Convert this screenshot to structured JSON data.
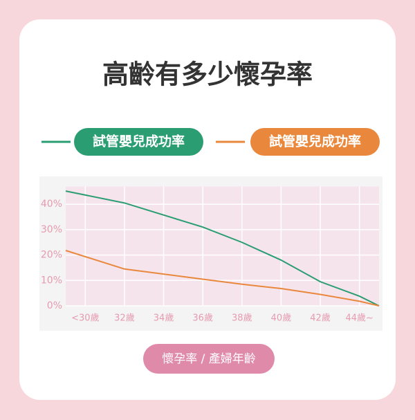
{
  "chart_data": {
    "type": "line",
    "title": "高齡有多少懷孕率",
    "axis_label": "懷孕率 / 產婦年齡",
    "x": [
      29,
      32,
      36,
      38,
      40,
      42,
      44,
      45
    ],
    "xlim": [
      29,
      45
    ],
    "xticks": [
      {
        "value": 30,
        "label": "<30歲"
      },
      {
        "value": 32,
        "label": "32歲"
      },
      {
        "value": 34,
        "label": "34歲"
      },
      {
        "value": 36,
        "label": "36歲"
      },
      {
        "value": 38,
        "label": "38歲"
      },
      {
        "value": 40,
        "label": "40歲"
      },
      {
        "value": 42,
        "label": "42歲"
      },
      {
        "value": 44,
        "label": "44歲~"
      }
    ],
    "ylim": [
      0,
      47
    ],
    "yticks": [
      {
        "value": 0,
        "label": "0%"
      },
      {
        "value": 10,
        "label": "10%"
      },
      {
        "value": 20,
        "label": "20%"
      },
      {
        "value": 30,
        "label": "30%"
      },
      {
        "value": 40,
        "label": "40%"
      }
    ],
    "grid": true,
    "series": [
      {
        "name": "試管嬰兒成功率",
        "color": "#2a9d72",
        "values": [
          45.2,
          40.5,
          31,
          25,
          18,
          9.5,
          3.8,
          0
        ]
      },
      {
        "name": "試管嬰兒成功率",
        "color": "#e9883c",
        "values": [
          21.8,
          14.5,
          10.5,
          8.5,
          6.8,
          4.5,
          1.8,
          0
        ]
      }
    ]
  }
}
